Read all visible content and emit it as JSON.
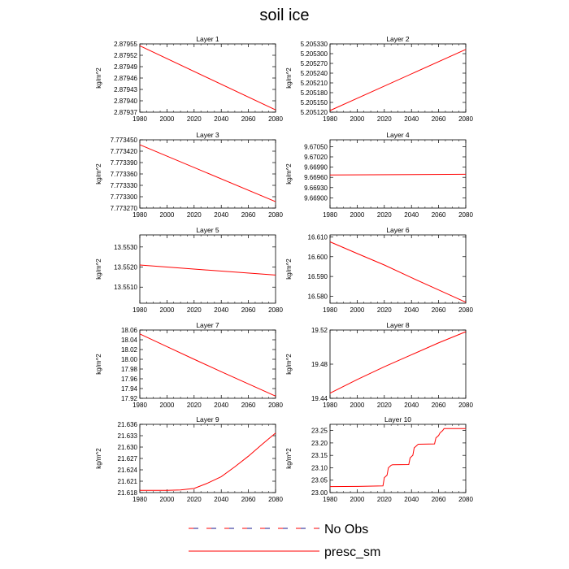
{
  "title": "soil ice",
  "legend": {
    "items": [
      {
        "label": "No Obs",
        "color": "#1a1a8c",
        "dash": true
      },
      {
        "label": "presc_sm",
        "color": "#ff0000",
        "dash": false
      }
    ]
  },
  "chart_data": [
    {
      "type": "line",
      "title": "Layer 1",
      "ylabel": "kg/m^2",
      "xlim": [
        1980,
        2080
      ],
      "ylim": [
        2.87937,
        2.87955
      ],
      "xticks": [
        1980,
        2000,
        2020,
        2040,
        2060,
        2080
      ],
      "xtick_labels": [
        "1980",
        "2000",
        "2020",
        "2040",
        "2060",
        "2080"
      ],
      "yticks": [
        2.87937,
        2.8794,
        2.87943,
        2.87946,
        2.87949,
        2.87952,
        2.87955
      ],
      "ytick_labels": [
        "2.87937",
        "2.87940",
        "2.87943",
        "2.87946",
        "2.87949",
        "2.87952",
        "2.87955"
      ],
      "series": [
        {
          "name": "presc_sm",
          "color": "#ff0000",
          "x": [
            1980,
            2080
          ],
          "y": [
            2.879545,
            2.879376
          ]
        }
      ]
    },
    {
      "type": "line",
      "title": "Layer 2",
      "ylabel": "kg/m^2",
      "xlim": [
        1980,
        2080
      ],
      "ylim": [
        5.20512,
        5.20533
      ],
      "xticks": [
        1980,
        2000,
        2020,
        2040,
        2060,
        2080
      ],
      "xtick_labels": [
        "1980",
        "2000",
        "2020",
        "2040",
        "2060",
        "2080"
      ],
      "yticks": [
        5.20512,
        5.20515,
        5.20518,
        5.20521,
        5.20524,
        5.20527,
        5.2053,
        5.20533
      ],
      "ytick_labels": [
        "5.205120",
        "5.205150",
        "5.205180",
        "5.205210",
        "5.205240",
        "5.205270",
        "5.205300",
        "5.205330"
      ],
      "series": [
        {
          "name": "presc_sm",
          "color": "#ff0000",
          "x": [
            1980,
            2080
          ],
          "y": [
            5.205125,
            5.205313
          ]
        }
      ]
    },
    {
      "type": "line",
      "title": "Layer 3",
      "ylabel": "kg/m^2",
      "xlim": [
        1980,
        2080
      ],
      "ylim": [
        7.77327,
        7.77345
      ],
      "xticks": [
        1980,
        2000,
        2020,
        2040,
        2060,
        2080
      ],
      "xtick_labels": [
        "1980",
        "2000",
        "2020",
        "2040",
        "2060",
        "2080"
      ],
      "yticks": [
        7.77327,
        7.7733,
        7.77333,
        7.77336,
        7.77339,
        7.77342,
        7.77345
      ],
      "ytick_labels": [
        "7.773270",
        "7.773300",
        "7.773330",
        "7.773360",
        "7.773390",
        "7.773420",
        "7.773450"
      ],
      "series": [
        {
          "name": "presc_sm",
          "color": "#ff0000",
          "x": [
            1980,
            2080
          ],
          "y": [
            7.773437,
            7.773287
          ]
        }
      ]
    },
    {
      "type": "line",
      "title": "Layer 4",
      "ylabel": "kg/m^2",
      "xlim": [
        1980,
        2080
      ],
      "ylim": [
        9.6687,
        9.6707
      ],
      "xticks": [
        1980,
        2000,
        2020,
        2040,
        2060,
        2080
      ],
      "xtick_labels": [
        "1980",
        "2000",
        "2020",
        "2040",
        "2060",
        "2080"
      ],
      "yticks": [
        9.669,
        9.6693,
        9.6696,
        9.6699,
        9.6702,
        9.6705
      ],
      "ytick_labels": [
        "9.66900",
        "9.66930",
        "9.66960",
        "9.66990",
        "9.67020",
        "9.67050"
      ],
      "series": [
        {
          "name": "presc_sm",
          "color": "#ff0000",
          "x": [
            1980,
            2080
          ],
          "y": [
            9.66967,
            9.66969
          ]
        }
      ]
    },
    {
      "type": "line",
      "title": "Layer 5",
      "ylabel": "kg/m^2",
      "xlim": [
        1980,
        2080
      ],
      "ylim": [
        13.5502,
        13.5536
      ],
      "xticks": [
        1980,
        2000,
        2020,
        2040,
        2060,
        2080
      ],
      "xtick_labels": [
        "1980",
        "2000",
        "2020",
        "2040",
        "2060",
        "2080"
      ],
      "yticks": [
        13.551,
        13.552,
        13.553
      ],
      "ytick_labels": [
        "13.5510",
        "13.5520",
        "13.5530"
      ],
      "series": [
        {
          "name": "presc_sm",
          "color": "#ff0000",
          "x": [
            1980,
            2080
          ],
          "y": [
            13.5521,
            13.5516
          ]
        }
      ]
    },
    {
      "type": "line",
      "title": "Layer 6",
      "ylabel": "kg/m^2",
      "xlim": [
        1980,
        2080
      ],
      "ylim": [
        16.5765,
        16.611
      ],
      "xticks": [
        1980,
        2000,
        2020,
        2040,
        2060,
        2080
      ],
      "xtick_labels": [
        "1980",
        "2000",
        "2020",
        "2040",
        "2060",
        "2080"
      ],
      "yticks": [
        16.58,
        16.59,
        16.6,
        16.61
      ],
      "ytick_labels": [
        "16.580",
        "16.590",
        "16.600",
        "16.610"
      ],
      "series": [
        {
          "name": "presc_sm",
          "color": "#ff0000",
          "x": [
            1980,
            2000,
            2020,
            2040,
            2060,
            2080
          ],
          "y": [
            16.6075,
            16.6016,
            16.5958,
            16.5894,
            16.5832,
            16.577
          ]
        }
      ]
    },
    {
      "type": "line",
      "title": "Layer 7",
      "ylabel": "kg/m^2",
      "xlim": [
        1980,
        2080
      ],
      "ylim": [
        17.92,
        18.06
      ],
      "xticks": [
        1980,
        2000,
        2020,
        2040,
        2060,
        2080
      ],
      "xtick_labels": [
        "1980",
        "2000",
        "2020",
        "2040",
        "2060",
        "2080"
      ],
      "yticks": [
        17.92,
        17.94,
        17.96,
        17.98,
        18.0,
        18.02,
        18.04,
        18.06
      ],
      "ytick_labels": [
        "17.92",
        "17.94",
        "17.96",
        "17.98",
        "18.00",
        "18.02",
        "18.04",
        "18.06"
      ],
      "series": [
        {
          "name": "presc_sm",
          "color": "#ff0000",
          "x": [
            1980,
            2000,
            2020,
            2040,
            2060,
            2080
          ],
          "y": [
            18.052,
            18.026,
            18.0,
            17.9745,
            17.9495,
            17.9245
          ]
        }
      ]
    },
    {
      "type": "line",
      "title": "Layer 8",
      "ylabel": "kg/m^2",
      "xlim": [
        1980,
        2080
      ],
      "ylim": [
        19.44,
        19.52
      ],
      "xticks": [
        1980,
        2000,
        2020,
        2040,
        2060,
        2080
      ],
      "xtick_labels": [
        "1980",
        "2000",
        "2020",
        "2040",
        "2060",
        "2080"
      ],
      "yticks": [
        19.44,
        19.48,
        19.52
      ],
      "ytick_labels": [
        "19.44",
        "19.48",
        "19.52"
      ],
      "series": [
        {
          "name": "presc_sm",
          "color": "#ff0000",
          "x": [
            1980,
            2000,
            2020,
            2040,
            2060,
            2080
          ],
          "y": [
            19.446,
            19.462,
            19.477,
            19.491,
            19.505,
            19.518
          ]
        }
      ]
    },
    {
      "type": "line",
      "title": "Layer 9",
      "ylabel": "kg/m^2",
      "xlim": [
        1980,
        2080
      ],
      "ylim": [
        21.618,
        21.636
      ],
      "xticks": [
        1980,
        2000,
        2020,
        2040,
        2060,
        2080
      ],
      "xtick_labels": [
        "1980",
        "2000",
        "2020",
        "2040",
        "2060",
        "2080"
      ],
      "yticks": [
        21.618,
        21.621,
        21.624,
        21.627,
        21.63,
        21.633,
        21.636
      ],
      "ytick_labels": [
        "21.618",
        "21.621",
        "21.624",
        "21.627",
        "21.630",
        "21.633",
        "21.636"
      ],
      "series": [
        {
          "name": "presc_sm",
          "color": "#ff0000",
          "x": [
            1980,
            2000,
            2010,
            2020,
            2030,
            2040,
            2050,
            2060,
            2070,
            2080
          ],
          "y": [
            21.6186,
            21.6186,
            21.6187,
            21.6191,
            21.6205,
            21.6222,
            21.6248,
            21.6276,
            21.6307,
            21.6337
          ]
        }
      ]
    },
    {
      "type": "line",
      "title": "Layer 10",
      "ylabel": "kg/m^2",
      "xlim": [
        1980,
        2080
      ],
      "ylim": [
        23.0,
        23.275
      ],
      "xticks": [
        1980,
        2000,
        2020,
        2040,
        2060,
        2080
      ],
      "xtick_labels": [
        "1980",
        "2000",
        "2020",
        "2040",
        "2060",
        "2080"
      ],
      "yticks": [
        23.0,
        23.05,
        23.1,
        23.15,
        23.2,
        23.25
      ],
      "ytick_labels": [
        "23.00",
        "23.05",
        "23.10",
        "23.15",
        "23.20",
        "23.25"
      ],
      "series": [
        {
          "name": "presc_sm",
          "color": "#ff0000",
          "x": [
            1980,
            2001,
            2019,
            2020,
            2022,
            2023,
            2025,
            2026,
            2038,
            2039,
            2041,
            2042,
            2044,
            2045,
            2057,
            2058,
            2060,
            2061,
            2063,
            2064,
            2080
          ],
          "y": [
            23.024,
            23.025,
            23.027,
            23.06,
            23.07,
            23.1,
            23.11,
            23.112,
            23.113,
            23.14,
            23.15,
            23.18,
            23.19,
            23.195,
            23.196,
            23.22,
            23.23,
            23.24,
            23.25,
            23.258,
            23.258
          ]
        }
      ]
    }
  ]
}
